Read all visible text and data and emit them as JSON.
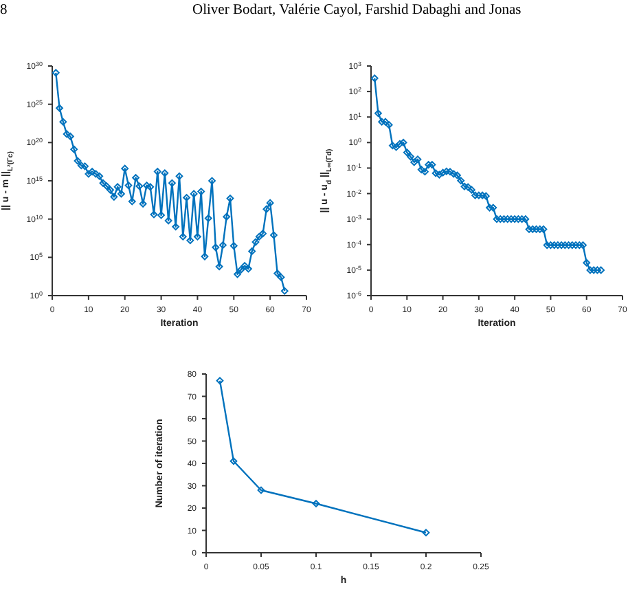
{
  "chart_data": [
    {
      "type": "line",
      "annotations": [
        "8",
        "Oliver Bodart, Valérie Cayol, Farshid Dabaghi and Jonas"
      ],
      "xlabel": "Iteration",
      "ylabel": "|| u - m ||$_{L²(Γc)}$",
      "marker": "diamond",
      "log": "y",
      "color": "#0072bd",
      "x": [
        1,
        2,
        3,
        4,
        5,
        6,
        7,
        8,
        9,
        10,
        11,
        12,
        13,
        14,
        15,
        16,
        17,
        18,
        19,
        20,
        21,
        22,
        23,
        24,
        25,
        26,
        27,
        28,
        29,
        30,
        31,
        32,
        33,
        34,
        35,
        36,
        37,
        38,
        39,
        40,
        41,
        42,
        43,
        44,
        45,
        46,
        47,
        48,
        49,
        50,
        51,
        52,
        53,
        54,
        55,
        56,
        57,
        58,
        59,
        60,
        61,
        62,
        63,
        64
      ],
      "values": [
        1.3e+29,
        3.2e+24,
        5e+22,
        1.3e+21,
        6.3e+20,
        1.3e+19,
        4e+17,
        1e+17,
        8e+16,
        8000000000000000.0,
        1.6e+16,
        8000000000000000.0,
        4000000000000000.0,
        500000000000000.0,
        200000000000000.0,
        63000000000000.0,
        8000000000000.0,
        160000000000000.0,
        20000000000000.0,
        4e+16,
        250000000000000.0,
        2000000000000.0,
        2500000000000000.0,
        200000000000000.0,
        1000000000000.0,
        250000000000000.0,
        160000000000000.0,
        40000000000.0,
        1.6e+16,
        32000000000.0,
        1e+16,
        6300000000.0,
        500000000000000.0,
        1000000000.0,
        4000000000000000.0,
        50000000.0,
        6300000000000.0,
        16000000.0,
        20000000000000.0,
        50000000.0,
        40000000000000.0,
        130000.0,
        13000000000.0,
        1000000000000000.0,
        2000000.0,
        6300,
        4000000.0,
        20000000000.0,
        5000000000000.0,
        3200000.0,
        630,
        2500,
        8000,
        3200,
        630000.0,
        10000000.0,
        50000000.0,
        130000000.0,
        200000000000.0,
        1300000000000.0,
        80000000.0,
        800,
        250,
        4
      ],
      "xlim": [
        0,
        70
      ],
      "xticks": [
        0,
        10,
        20,
        30,
        40,
        50,
        60,
        70
      ],
      "ylim": [
        1,
        1e+30
      ],
      "yticks": [
        {
          "value": 1,
          "label": "10$^{0}$"
        },
        {
          "value": 100000.0,
          "label": "10$^{5}$"
        },
        {
          "value": 10000000000.0,
          "label": "10$^{10}$"
        },
        {
          "value": 1000000000000000.0,
          "label": "10$^{15}$"
        },
        {
          "value": 1e+20,
          "label": "10$^{20}$"
        },
        {
          "value": 1e+25,
          "label": "10$^{25}$"
        },
        {
          "value": 1e+30,
          "label": "10$^{30}$"
        }
      ]
    },
    {
      "type": "line",
      "xlabel": "Iteration",
      "ylabel": "|| u - u$_{d}$ ||$_{L∞(Γd)}$",
      "marker": "diamond",
      "log": "y",
      "color": "#0072bd",
      "x": [
        1,
        2,
        3,
        4,
        5,
        6,
        7,
        8,
        9,
        10,
        11,
        12,
        13,
        14,
        15,
        16,
        17,
        18,
        19,
        20,
        21,
        22,
        23,
        24,
        25,
        26,
        27,
        28,
        29,
        30,
        31,
        32,
        33,
        34,
        35,
        36,
        37,
        38,
        39,
        40,
        41,
        42,
        43,
        44,
        45,
        46,
        47,
        48,
        49,
        50,
        51,
        52,
        53,
        54,
        55,
        56,
        57,
        58,
        59,
        60,
        61,
        62,
        63,
        64
      ],
      "values": [
        330,
        14,
        6.5,
        6.5,
        4.9,
        0.76,
        0.66,
        0.89,
        1.0,
        0.41,
        0.28,
        0.17,
        0.22,
        0.087,
        0.072,
        0.135,
        0.135,
        0.063,
        0.055,
        0.066,
        0.074,
        0.072,
        0.059,
        0.052,
        0.032,
        0.019,
        0.018,
        0.014,
        0.0085,
        0.0085,
        0.0085,
        0.008,
        0.0028,
        0.0028,
        0.001,
        0.001,
        0.001,
        0.001,
        0.001,
        0.001,
        0.001,
        0.001,
        0.001,
        0.0004,
        0.0004,
        0.0004,
        0.0004,
        0.0004,
        9.5e-05,
        9.5e-05,
        9.5e-05,
        9.5e-05,
        9.5e-05,
        9.5e-05,
        9.5e-05,
        9.5e-05,
        9.5e-05,
        9.5e-05,
        9.5e-05,
        1.95e-05,
        1e-05,
        1e-05,
        1e-05,
        1e-05
      ],
      "xlim": [
        0,
        70
      ],
      "xticks": [
        0,
        10,
        20,
        30,
        40,
        50,
        60,
        70
      ],
      "ylim": [
        1e-06,
        1000
      ],
      "yticks": [
        {
          "value": 1e-06,
          "label": "10$^{-6}$"
        },
        {
          "value": 1e-05,
          "label": "10$^{-5}$"
        },
        {
          "value": 0.0001,
          "label": "10$^{-4}$"
        },
        {
          "value": 0.001,
          "label": "10$^{-3}$"
        },
        {
          "value": 0.01,
          "label": "10$^{-2}$"
        },
        {
          "value": 0.1,
          "label": "10$^{-1}$"
        },
        {
          "value": 1,
          "label": "10$^{0}$"
        },
        {
          "value": 10,
          "label": "10$^{1}$"
        },
        {
          "value": 100,
          "label": "10$^{2}$"
        },
        {
          "value": 1000,
          "label": "10$^{3}$"
        }
      ]
    },
    {
      "type": "line",
      "xlabel": "h",
      "ylabel": "Number of iteration",
      "marker": "diamond",
      "color": "#0072bd",
      "x": [
        0.0125,
        0.025,
        0.05,
        0.1,
        0.2
      ],
      "values": [
        77,
        41,
        28,
        22,
        9
      ],
      "xlim": [
        0,
        0.25
      ],
      "xticks": [
        0,
        0.05,
        0.1,
        0.15,
        0.2,
        0.25
      ],
      "ylim": [
        0,
        80
      ],
      "yticks": [
        0,
        10,
        20,
        30,
        40,
        50,
        60,
        70,
        80
      ]
    }
  ]
}
